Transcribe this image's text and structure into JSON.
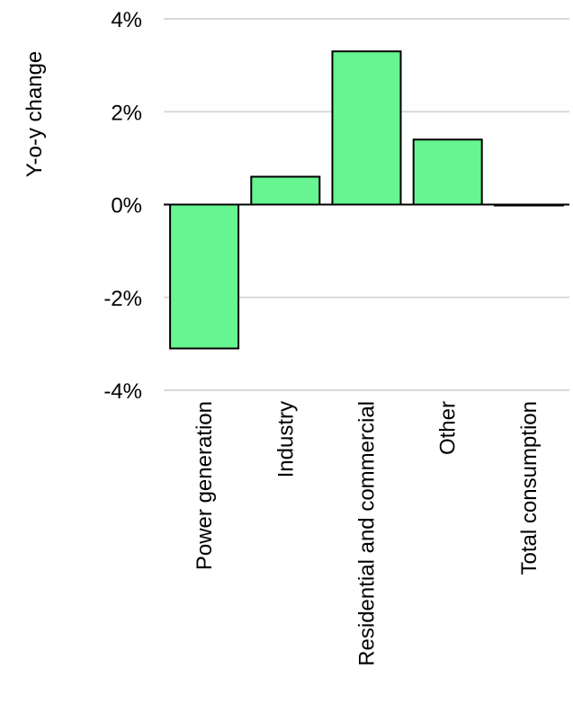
{
  "chart_data": {
    "type": "bar",
    "ylabel": "Y-o-y change",
    "categories": [
      "Power generation",
      "Industry",
      "Residential and commercial",
      "Other",
      "Total consumption"
    ],
    "values": [
      -3.1,
      0.6,
      3.3,
      1.4,
      -0.02
    ],
    "ylim": [
      -4,
      4
    ],
    "yticks": [
      4,
      2,
      0,
      -2,
      -4
    ],
    "ytick_labels": [
      "4%",
      "2%",
      "0%",
      "-2%",
      "-4%"
    ],
    "grid": true,
    "bar_color": "#66f590"
  }
}
